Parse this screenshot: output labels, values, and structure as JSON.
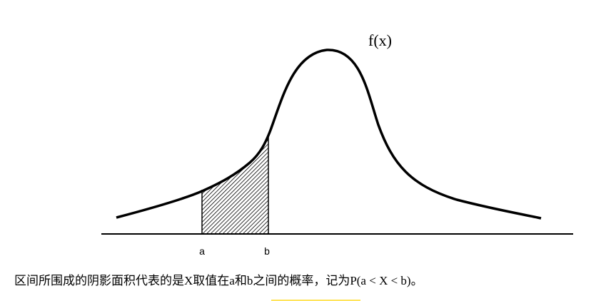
{
  "labels": {
    "function": "f(x)",
    "a": "a",
    "b": "b"
  },
  "caption": "区间所围成的阴影面积代表的是X取值在a和b之间的概率，记为P(a < X < b)。"
}
